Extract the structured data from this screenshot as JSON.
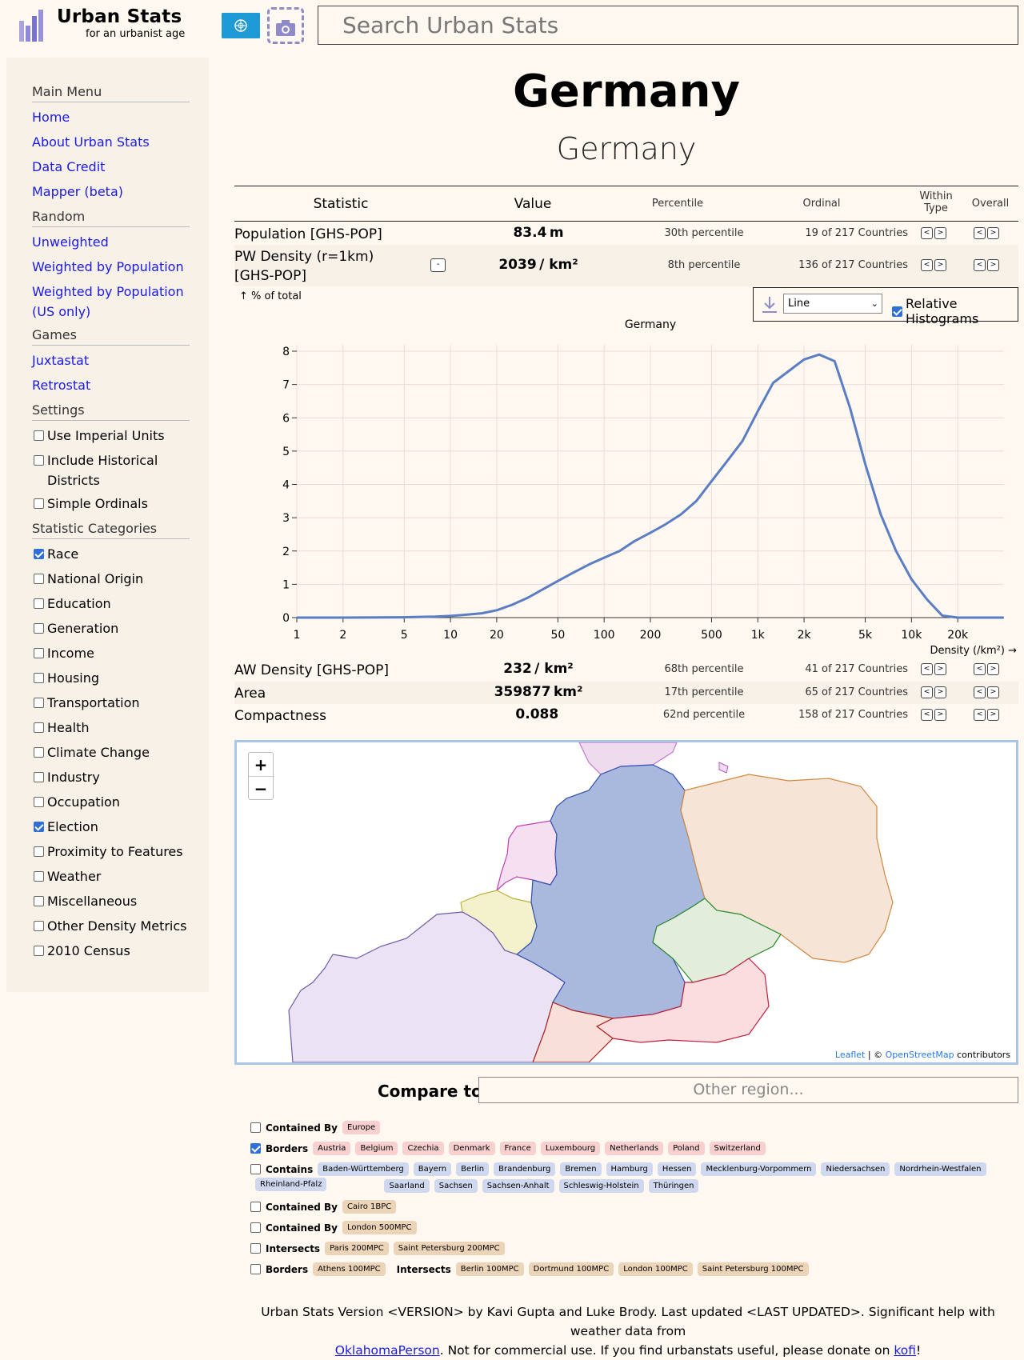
{
  "header": {
    "brand_title": "Urban Stats",
    "brand_subtitle": "for an urbanist age",
    "search_placeholder": "Search Urban Stats"
  },
  "sidebar": {
    "sections": [
      {
        "title": "Main Menu"
      },
      {
        "title": "Random"
      },
      {
        "title": "Games"
      },
      {
        "title": "Settings"
      },
      {
        "title": "Statistic Categories"
      }
    ],
    "main_links": [
      "Home",
      "About Urban Stats",
      "Data Credit",
      "Mapper (beta)"
    ],
    "random_links": [
      "Unweighted",
      "Weighted by Population",
      "Weighted by Population (US only)"
    ],
    "games_links": [
      "Juxtastat",
      "Retrostat"
    ],
    "settings": [
      {
        "label": "Use Imperial Units",
        "checked": false
      },
      {
        "label": "Include Historical Districts",
        "checked": false
      },
      {
        "label": "Simple Ordinals",
        "checked": false
      }
    ],
    "categories": [
      {
        "label": "Race",
        "checked": true
      },
      {
        "label": "National Origin",
        "checked": false
      },
      {
        "label": "Education",
        "checked": false
      },
      {
        "label": "Generation",
        "checked": false
      },
      {
        "label": "Income",
        "checked": false
      },
      {
        "label": "Housing",
        "checked": false
      },
      {
        "label": "Transportation",
        "checked": false
      },
      {
        "label": "Health",
        "checked": false
      },
      {
        "label": "Climate Change",
        "checked": false
      },
      {
        "label": "Industry",
        "checked": false
      },
      {
        "label": "Occupation",
        "checked": false
      },
      {
        "label": "Election",
        "checked": true
      },
      {
        "label": "Proximity to Features",
        "checked": false
      },
      {
        "label": "Weather",
        "checked": false
      },
      {
        "label": "Miscellaneous",
        "checked": false
      },
      {
        "label": "Other Density Metrics",
        "checked": false
      },
      {
        "label": "2010 Census",
        "checked": false
      }
    ]
  },
  "page": {
    "title": "Germany",
    "subtitle": "Germany"
  },
  "table": {
    "headers": {
      "statistic": "Statistic",
      "value": "Value",
      "percentile": "Percentile",
      "ordinal": "Ordinal",
      "within_type_1": "Within",
      "within_type_2": "Type",
      "overall": "Overall"
    },
    "rows": [
      {
        "name": "Population [GHS-POP]",
        "value": "83.4",
        "unit": "m",
        "percentile": "30th percentile",
        "ordinal": "19 of 217 Countries"
      },
      {
        "name": "PW Density (r=1km) [GHS-POP]",
        "value": "2039",
        "unit": "/ km²",
        "percentile": "8th percentile",
        "ordinal": "136 of 217 Countries"
      },
      {
        "name": "AW Density [GHS-POP]",
        "value": "232",
        "unit": "/ km²",
        "percentile": "68th percentile",
        "ordinal": "41 of 217 Countries"
      },
      {
        "name": "Area",
        "value": "359877",
        "unit": "km²",
        "percentile": "17th percentile",
        "ordinal": "65 of 217 Countries"
      },
      {
        "name": "Compactness",
        "value": "0.088",
        "unit": "",
        "percentile": "62nd percentile",
        "ordinal": "158 of 217 Countries"
      }
    ],
    "prev_label": "<",
    "next_label": ">",
    "collapse_label": "-"
  },
  "histogram": {
    "mode_selected": "Line",
    "relative_label": "Relative Histograms",
    "relative_checked": true
  },
  "chart_data": {
    "type": "line",
    "title": "Germany",
    "ylabel": "↑ % of total",
    "xlabel": "Density (/km²) →",
    "x_scale": "log",
    "xlim": [
      1,
      40000
    ],
    "ylim": [
      0,
      8
    ],
    "yticks": [
      0,
      1,
      2,
      3,
      4,
      5,
      6,
      7,
      8
    ],
    "xticks": [
      {
        "v": 1,
        "label": "1"
      },
      {
        "v": 2,
        "label": "2"
      },
      {
        "v": 5,
        "label": "5"
      },
      {
        "v": 10,
        "label": "10"
      },
      {
        "v": 20,
        "label": "20"
      },
      {
        "v": 50,
        "label": "50"
      },
      {
        "v": 100,
        "label": "100"
      },
      {
        "v": 200,
        "label": "200"
      },
      {
        "v": 500,
        "label": "500"
      },
      {
        "v": 1000,
        "label": "1k"
      },
      {
        "v": 2000,
        "label": "2k"
      },
      {
        "v": 5000,
        "label": "5k"
      },
      {
        "v": 10000,
        "label": "10k"
      },
      {
        "v": 20000,
        "label": "20k"
      }
    ],
    "series": [
      {
        "name": "Germany",
        "color": "#5a7dc4",
        "x": [
          1,
          2,
          5,
          8,
          10,
          12,
          16,
          20,
          25,
          32,
          40,
          50,
          63,
          80,
          100,
          126,
          158,
          200,
          251,
          316,
          398,
          501,
          631,
          794,
          1000,
          1259,
          1585,
          1995,
          2512,
          3162,
          3981,
          5012,
          6310,
          7943,
          10000,
          12589,
          15849,
          19953,
          25119,
          31623,
          39811
        ],
        "values": [
          0,
          0,
          0.01,
          0.03,
          0.05,
          0.08,
          0.13,
          0.22,
          0.38,
          0.6,
          0.85,
          1.1,
          1.35,
          1.6,
          1.8,
          2.0,
          2.3,
          2.55,
          2.8,
          3.1,
          3.5,
          4.1,
          4.7,
          5.3,
          6.2,
          7.05,
          7.4,
          7.75,
          7.9,
          7.7,
          6.3,
          4.6,
          3.1,
          2.0,
          1.15,
          0.55,
          0.06,
          0.0,
          0.0,
          0.0,
          0.0
        ]
      }
    ]
  },
  "map": {
    "zoom_in": "+",
    "zoom_out": "−",
    "attribution_leaflet": "Leaflet",
    "attribution_sep": " | © ",
    "attribution_osm": "OpenStreetMap",
    "attribution_suffix": " contributors"
  },
  "compare": {
    "label": "Compare to:",
    "placeholder": "Other region..."
  },
  "related": [
    {
      "label": "Contained By",
      "tag_color": "pink",
      "tags": [
        "Europe"
      ]
    },
    {
      "label": "Borders",
      "checked": true,
      "tag_color": "pink",
      "tags": [
        "Austria",
        "Belgium",
        "Czechia",
        "Denmark",
        "France",
        "Luxembourg",
        "Netherlands",
        "Poland",
        "Switzerland"
      ]
    },
    {
      "label": "Contains",
      "tag_color": "blue",
      "tags": [
        "Baden-Württemberg",
        "Bayern",
        "Berlin",
        "Brandenburg",
        "Bremen",
        "Hamburg",
        "Hessen",
        "Mecklenburg-Vorpommern",
        "Niedersachsen",
        "Nordrhein-Westfalen",
        "Rheinland-Pfalz",
        "Saarland",
        "Sachsen",
        "Sachsen-Anhalt",
        "Schleswig-Holstein",
        "Thüringen"
      ]
    },
    {
      "label": "Contained By",
      "tag_color": "tan",
      "tags": [
        "Cairo 1BPC"
      ]
    },
    {
      "label": "Contained By",
      "tag_color": "tan",
      "tags": [
        "London 500MPC"
      ]
    },
    {
      "label": "Intersects",
      "tag_color": "tan",
      "tags": [
        "Paris 200MPC",
        "Saint Petersburg 200MPC"
      ]
    },
    {
      "label": "Borders",
      "tag_color": "tan",
      "tags": [
        "Athens 100MPC"
      ],
      "label2": "Intersects",
      "tags2": [
        "Berlin 100MPC",
        "Dortmund 100MPC",
        "London 100MPC",
        "Saint Petersburg 100MPC"
      ]
    }
  ],
  "footer": {
    "line1": "Urban Stats Version <VERSION> by Kavi Gupta and Luke Brody. Last updated <LAST UPDATED>. Significant help with weather data from",
    "link1": "OklahomaPerson",
    "mid": ". Not for commercial use. If you find urbanstats useful, please donate on ",
    "link2": "kofi",
    "end": "!"
  }
}
